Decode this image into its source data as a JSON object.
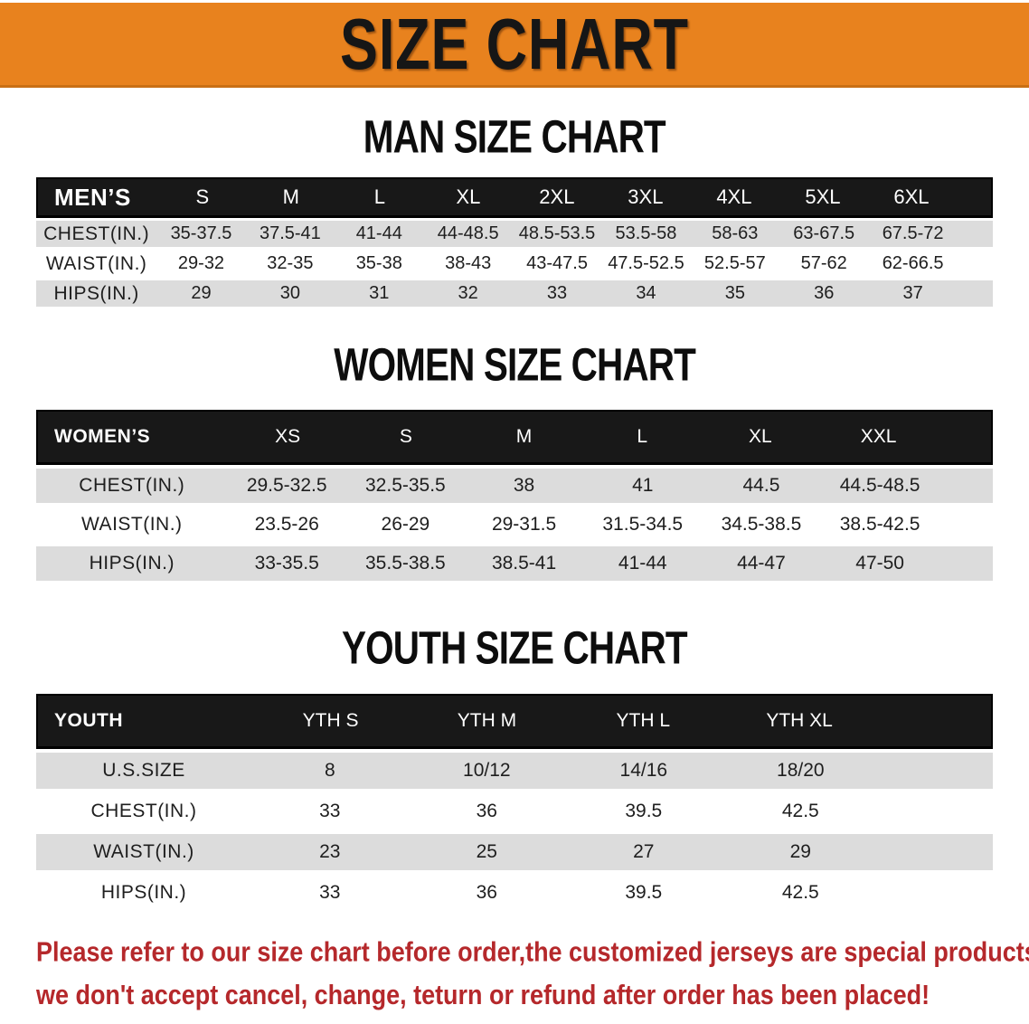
{
  "banner": {
    "title": "SIZE CHART"
  },
  "colors": {
    "banner_bg": "#E8821E",
    "banner_text": "#161616",
    "table_header_bg": "#181818",
    "table_header_text": "#FFFFFF",
    "row_shaded_bg": "#DCDCDC",
    "row_plain_bg": "#FFFFFF",
    "body_text": "#1E1E1E",
    "disclaimer_text": "#B5282B"
  },
  "sections": [
    {
      "heading": "MAN SIZE CHART",
      "table": {
        "header": [
          "MEN’S",
          "S",
          "M",
          "L",
          "XL",
          "2XL",
          "3XL",
          "4XL",
          "5XL",
          "6XL"
        ],
        "rows": [
          {
            "label": "CHEST(IN.)",
            "values": [
              "35-37.5",
              "37.5-41",
              "41-44",
              "44-48.5",
              "48.5-53.5",
              "53.5-58",
              "58-63",
              "63-67.5",
              "67.5-72"
            ]
          },
          {
            "label": "WAIST(IN.)",
            "values": [
              "29-32",
              "32-35",
              "35-38",
              "38-43",
              "43-47.5",
              "47.5-52.5",
              "52.5-57",
              "57-62",
              "62-66.5"
            ]
          },
          {
            "label": "HIPS(IN.)",
            "values": [
              "29",
              "30",
              "31",
              "32",
              "33",
              "34",
              "35",
              "36",
              "37"
            ]
          }
        ]
      }
    },
    {
      "heading": "WOMEN SIZE CHART",
      "table": {
        "header": [
          "WOMEN’S",
          "XS",
          "S",
          "M",
          "L",
          "XL",
          "XXL"
        ],
        "rows": [
          {
            "label": "CHEST(IN.)",
            "values": [
              "29.5-32.5",
              "32.5-35.5",
              "38",
              "41",
              "44.5",
              "44.5-48.5"
            ]
          },
          {
            "label": "WAIST(IN.)",
            "values": [
              "23.5-26",
              "26-29",
              "29-31.5",
              "31.5-34.5",
              "34.5-38.5",
              "38.5-42.5"
            ]
          },
          {
            "label": "HIPS(IN.)",
            "values": [
              "33-35.5",
              "35.5-38.5",
              "38.5-41",
              "41-44",
              "44-47",
              "47-50"
            ]
          }
        ]
      }
    },
    {
      "heading": "YOUTH SIZE CHART",
      "table": {
        "header": [
          "YOUTH",
          "YTH S",
          "YTH M",
          "YTH L",
          "YTH XL"
        ],
        "rows": [
          {
            "label": "U.S.SIZE",
            "values": [
              "8",
              "10/12",
              "14/16",
              "18/20"
            ]
          },
          {
            "label": "CHEST(IN.)",
            "values": [
              "33",
              "36",
              "39.5",
              "42.5"
            ]
          },
          {
            "label": "WAIST(IN.)",
            "values": [
              "23",
              "25",
              "27",
              "29"
            ]
          },
          {
            "label": "HIPS(IN.)",
            "values": [
              "33",
              "36",
              "39.5",
              "42.5"
            ]
          }
        ]
      }
    }
  ],
  "disclaimer": {
    "line1": "Please refer to our size chart before order,the customized jerseys are special products,",
    "line2": "we don't accept cancel, change, teturn or refund after order has been placed!"
  }
}
